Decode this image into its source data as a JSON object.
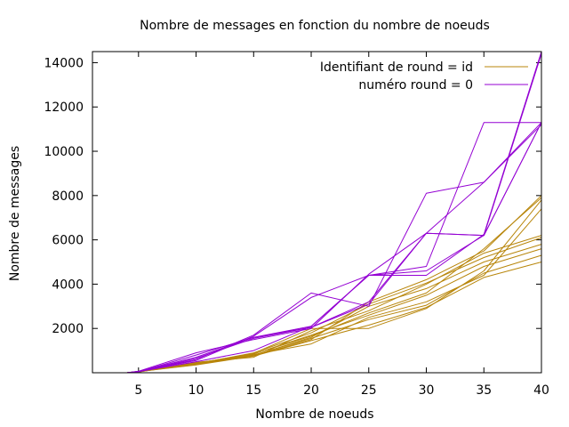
{
  "chart_data": {
    "type": "line",
    "title": "Nombre de messages en fonction du nombre de noeuds",
    "xlabel": "Nombre de noeuds",
    "ylabel": "Nombre de messages",
    "xlim": [
      1,
      40
    ],
    "ylim": [
      0,
      14500
    ],
    "xticks": [
      5,
      10,
      15,
      20,
      25,
      30,
      35,
      40
    ],
    "yticks": [
      2000,
      4000,
      6000,
      8000,
      10000,
      12000,
      14000
    ],
    "x": [
      4,
      5,
      10,
      15,
      20,
      25,
      30,
      35,
      40
    ],
    "legend_position": "top-right",
    "grid": false,
    "series": [
      {
        "name": "Identifiant de round = id",
        "color": "#b8860b",
        "runs": [
          [
            0,
            50,
            350,
            750,
            1450,
            2150,
            2950,
            4300,
            5000
          ],
          [
            0,
            40,
            420,
            800,
            1550,
            2400,
            3050,
            4500,
            5300
          ],
          [
            0,
            60,
            380,
            850,
            1700,
            2600,
            3500,
            4800,
            5600
          ],
          [
            0,
            30,
            450,
            780,
            1600,
            3000,
            3800,
            5000,
            5800
          ],
          [
            0,
            50,
            400,
            900,
            1800,
            3100,
            4050,
            5200,
            6100
          ],
          [
            0,
            40,
            470,
            700,
            1900,
            2800,
            4000,
            5400,
            6200
          ],
          [
            0,
            60,
            360,
            820,
            1300,
            2500,
            3200,
            4400,
            7400
          ],
          [
            0,
            50,
            410,
            880,
            2000,
            2000,
            2900,
            4600,
            7800
          ],
          [
            0,
            40,
            390,
            760,
            1500,
            3200,
            4200,
            5500,
            8000
          ],
          [
            0,
            50,
            430,
            850,
            1650,
            2700,
            3600,
            5600,
            7900
          ]
        ]
      },
      {
        "name": "numéro round = 0",
        "color": "#9400d3",
        "runs": [
          [
            0,
            60,
            700,
            1600,
            2100,
            4400,
            4600,
            6200,
            11300
          ],
          [
            0,
            50,
            600,
            1700,
            3600,
            3000,
            8100,
            8600,
            11200
          ],
          [
            0,
            70,
            900,
            1500,
            2000,
            4450,
            6300,
            6200,
            14400
          ],
          [
            0,
            50,
            500,
            1000,
            2100,
            4400,
            4800,
            11300,
            11300
          ],
          [
            0,
            40,
            650,
            1550,
            2050,
            3100,
            6300,
            8600,
            11300
          ],
          [
            0,
            60,
            550,
            1650,
            3400,
            4400,
            4400,
            6250,
            14500
          ],
          [
            0,
            50,
            800,
            1600,
            2050,
            3200,
            6300,
            6200,
            11300
          ]
        ]
      }
    ]
  }
}
